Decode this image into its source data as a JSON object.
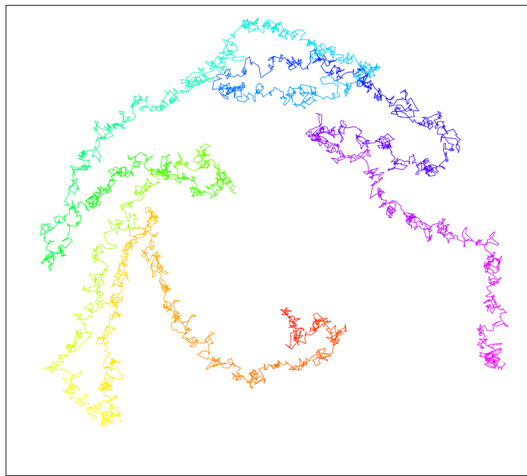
{
  "image": {
    "kind": "random-walk-art",
    "background": "#ffffff",
    "border_color": "#000000",
    "palette": [
      "#ff0000",
      "#ff6a00",
      "#ffa500",
      "#ffd700",
      "#ffff00",
      "#aaff00",
      "#55ff00",
      "#00ff00",
      "#00ff7f",
      "#00ffcc",
      "#00ccff",
      "#0088ff",
      "#0000ff",
      "#5500ff",
      "#9900ff",
      "#cc00ff",
      "#ff00ff"
    ]
  }
}
